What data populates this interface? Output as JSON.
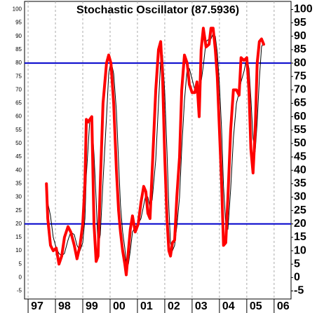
{
  "chart_data": {
    "type": "line",
    "title": "Stochastic Oscillator (87.5936)",
    "x": [
      1997.67,
      1997.72,
      1997.82,
      1997.92,
      1998.03,
      1998.13,
      1998.23,
      1998.33,
      1998.46,
      1998.56,
      1998.69,
      1998.79,
      1998.9,
      1999.0,
      1999.08,
      1999.13,
      1999.21,
      1999.26,
      1999.33,
      1999.41,
      1999.49,
      1999.56,
      1999.64,
      1999.74,
      1999.87,
      1999.95,
      2000.03,
      2000.13,
      2000.23,
      2000.31,
      2000.38,
      2000.46,
      2000.54,
      2000.59,
      2000.67,
      2000.74,
      2000.82,
      2000.92,
      2001.03,
      2001.13,
      2001.23,
      2001.31,
      2001.38,
      2001.46,
      2001.54,
      2001.67,
      2001.77,
      2001.85,
      2001.92,
      2002.0,
      2002.08,
      2002.15,
      2002.21,
      2002.28,
      2002.36,
      2002.44,
      2002.54,
      2002.62,
      2002.72,
      2002.82,
      2002.9,
      2003.0,
      2003.1,
      2003.18,
      2003.26,
      2003.33,
      2003.41,
      2003.51,
      2003.62,
      2003.69,
      2003.77,
      2003.85,
      2003.92,
      2004.0,
      2004.08,
      2004.15,
      2004.23,
      2004.31,
      2004.41,
      2004.51,
      2004.62,
      2004.72,
      2004.79,
      2004.9,
      2005.0,
      2005.08,
      2005.15,
      2005.23,
      2005.31,
      2005.38,
      2005.46,
      2005.54,
      2005.62
    ],
    "series": [
      {
        "color": "#000000",
        "values": [
          35,
          28,
          23,
          15,
          11,
          9,
          8,
          9,
          14,
          17,
          16,
          12,
          10,
          13,
          22,
          38,
          51,
          59,
          59,
          46,
          29,
          11,
          16,
          36,
          60,
          76,
          81,
          76,
          62,
          43,
          27,
          17,
          11,
          5,
          5,
          10,
          17,
          19,
          20,
          22,
          27,
          31,
          30,
          26,
          29,
          44,
          65,
          81,
          83,
          69,
          47,
          26,
          13,
          10,
          12,
          19,
          30,
          48,
          66,
          78,
          78,
          74,
          70,
          70,
          67,
          73,
          79,
          88,
          89,
          89,
          91,
          90,
          84,
          72,
          55,
          34,
          20,
          18,
          33,
          52,
          65,
          69,
          73,
          77,
          82,
          78,
          67,
          52,
          47,
          58,
          74,
          86,
          88
        ]
      },
      {
        "color": "#ff0000",
        "values": [
          35,
          22,
          12,
          10,
          11,
          5,
          8,
          15,
          19,
          17,
          12,
          7,
          12,
          20,
          35,
          59,
          58,
          59,
          60,
          20,
          6,
          8,
          35,
          65,
          80,
          83,
          80,
          65,
          40,
          25,
          17,
          10,
          5,
          1,
          10,
          18,
          23,
          17,
          20,
          28,
          34,
          32,
          24,
          22,
          40,
          70,
          85,
          88,
          75,
          45,
          22,
          10,
          8,
          13,
          14,
          30,
          45,
          70,
          83,
          80,
          72,
          69,
          69,
          73,
          60,
          85,
          93,
          86,
          87,
          93,
          93,
          85,
          75,
          55,
          35,
          12,
          13,
          30,
          55,
          70,
          70,
          68,
          82,
          81,
          82,
          70,
          48,
          39,
          55,
          80,
          88,
          89,
          87
        ]
      }
    ],
    "hlines": [
      80,
      20
    ],
    "hline_color": "#0000cc",
    "xlim": [
      1996.87,
      2006.62
    ],
    "xticks": [
      {
        "value": 1997,
        "label": "97"
      },
      {
        "value": 1998,
        "label": "98"
      },
      {
        "value": 1999,
        "label": "99"
      },
      {
        "value": 2000,
        "label": "00"
      },
      {
        "value": 2001,
        "label": "01"
      },
      {
        "value": 2002,
        "label": "02"
      },
      {
        "value": 2003,
        "label": "03"
      },
      {
        "value": 2004,
        "label": "04"
      },
      {
        "value": 2005,
        "label": "05"
      },
      {
        "value": 2006,
        "label": "06"
      }
    ],
    "ylim": [
      -8,
      103
    ],
    "yticks": [
      -5,
      0,
      5,
      10,
      15,
      20,
      25,
      30,
      35,
      40,
      45,
      50,
      55,
      60,
      65,
      70,
      75,
      80,
      85,
      90,
      95,
      100
    ],
    "grid": true
  }
}
